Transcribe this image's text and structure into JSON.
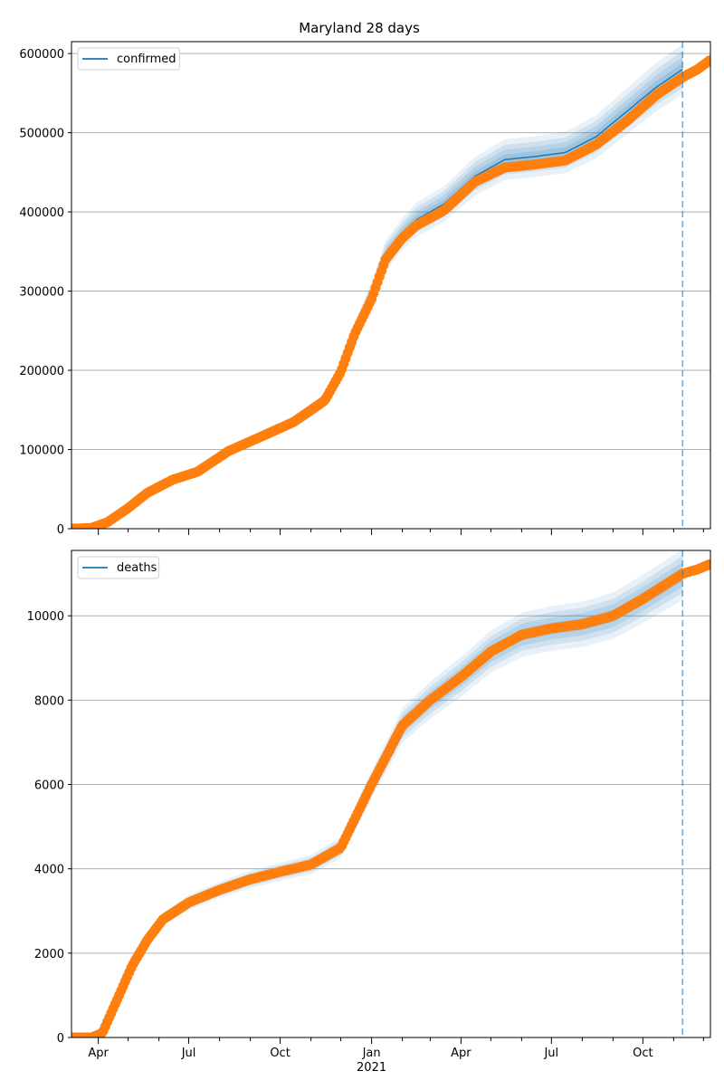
{
  "title": "Maryland 28 days",
  "chart_data": [
    {
      "type": "line",
      "title": "Maryland 28 days",
      "ylabel": "",
      "xlabel": "",
      "ylim": [
        0,
        615000
      ],
      "xlim": [
        "2020-03-05",
        "2021-12-08"
      ],
      "yticks": [
        0,
        100000,
        200000,
        300000,
        400000,
        500000,
        600000
      ],
      "ytick_labels": [
        "0",
        "100000",
        "200000",
        "300000",
        "400000",
        "500000",
        "600000"
      ],
      "forecast_start": "2021-11-10",
      "legend": {
        "entries": [
          "confirmed"
        ],
        "position": "upper left"
      },
      "grid": "horizontal",
      "colors": {
        "model": "#1f77b4",
        "observed": "#ff7f0e",
        "band": "#1f77b4"
      },
      "series": [
        {
          "name": "confirmed",
          "kind": "model-with-bands",
          "x": [
            "2020-03-05",
            "2020-03-25",
            "2020-04-10",
            "2020-05-01",
            "2020-05-20",
            "2020-06-15",
            "2020-07-10",
            "2020-08-10",
            "2020-09-15",
            "2020-10-15",
            "2020-11-15",
            "2020-12-01",
            "2020-12-15",
            "2021-01-01",
            "2021-01-15",
            "2021-02-01",
            "2021-02-15",
            "2021-03-15",
            "2021-04-15",
            "2021-05-15",
            "2021-06-15",
            "2021-07-15",
            "2021-08-15",
            "2021-09-15",
            "2021-10-15",
            "2021-11-10"
          ],
          "values": [
            0,
            1000,
            8000,
            26000,
            45000,
            62000,
            72000,
            98000,
            118000,
            135000,
            162000,
            198000,
            246000,
            296000,
            345000,
            372000,
            390000,
            410000,
            445000,
            466000,
            470000,
            475000,
            495000,
            527000,
            558000,
            580000
          ]
        },
        {
          "name": "",
          "kind": "observed",
          "x": [
            "2020-03-05",
            "2020-03-25",
            "2020-04-10",
            "2020-05-01",
            "2020-05-20",
            "2020-06-15",
            "2020-07-10",
            "2020-08-10",
            "2020-09-15",
            "2020-10-15",
            "2020-11-15",
            "2020-12-01",
            "2020-12-15",
            "2021-01-01",
            "2021-01-15",
            "2021-02-01",
            "2021-02-15",
            "2021-03-15",
            "2021-04-15",
            "2021-05-15",
            "2021-06-15",
            "2021-07-15",
            "2021-08-15",
            "2021-09-15",
            "2021-10-15",
            "2021-11-10",
            "2021-11-25",
            "2021-12-08"
          ],
          "values": [
            0,
            1000,
            8000,
            26000,
            45000,
            62000,
            72000,
            98000,
            118000,
            135000,
            162000,
            198000,
            246000,
            290000,
            340000,
            367000,
            383000,
            402000,
            438000,
            456000,
            460000,
            465000,
            485000,
            515000,
            548000,
            570000,
            580000,
            592000
          ]
        }
      ]
    },
    {
      "type": "line",
      "title": "",
      "ylabel": "",
      "xlabel": "",
      "ylim": [
        0,
        11550
      ],
      "xlim": [
        "2020-03-05",
        "2021-12-08"
      ],
      "yticks": [
        0,
        2000,
        4000,
        6000,
        8000,
        10000
      ],
      "ytick_labels": [
        "0",
        "2000",
        "4000",
        "6000",
        "8000",
        "10000"
      ],
      "forecast_start": "2021-11-10",
      "legend": {
        "entries": [
          "deaths"
        ],
        "position": "upper left"
      },
      "grid": "horizontal",
      "colors": {
        "model": "#1f77b4",
        "observed": "#ff7f0e",
        "band": "#1f77b4"
      },
      "series": [
        {
          "name": "deaths",
          "kind": "model-with-bands",
          "x": [
            "2020-03-05",
            "2020-03-25",
            "2020-04-05",
            "2020-04-20",
            "2020-05-05",
            "2020-05-20",
            "2020-06-05",
            "2020-07-01",
            "2020-08-01",
            "2020-09-01",
            "2020-10-01",
            "2020-11-01",
            "2020-12-01",
            "2021-01-01",
            "2021-02-01",
            "2021-03-01",
            "2021-04-01",
            "2021-05-01",
            "2021-06-01",
            "2021-07-01",
            "2021-08-01",
            "2021-09-01",
            "2021-10-01",
            "2021-11-10"
          ],
          "values": [
            0,
            0,
            100,
            900,
            1700,
            2300,
            2800,
            3200,
            3500,
            3750,
            3930,
            4100,
            4500,
            6000,
            7400,
            8000,
            8550,
            9150,
            9550,
            9700,
            9800,
            10000,
            10400,
            10980
          ]
        },
        {
          "name": "",
          "kind": "observed",
          "x": [
            "2020-03-05",
            "2020-03-25",
            "2020-04-05",
            "2020-04-20",
            "2020-05-05",
            "2020-05-20",
            "2020-06-05",
            "2020-07-01",
            "2020-08-01",
            "2020-09-01",
            "2020-10-01",
            "2020-11-01",
            "2020-12-01",
            "2021-01-01",
            "2021-02-01",
            "2021-03-01",
            "2021-04-01",
            "2021-05-01",
            "2021-06-01",
            "2021-07-01",
            "2021-08-01",
            "2021-09-01",
            "2021-10-01",
            "2021-11-10",
            "2021-11-25",
            "2021-12-08"
          ],
          "values": [
            0,
            0,
            100,
            900,
            1700,
            2300,
            2800,
            3200,
            3500,
            3750,
            3930,
            4100,
            4500,
            6000,
            7400,
            8000,
            8550,
            9150,
            9550,
            9700,
            9800,
            10000,
            10400,
            11000,
            11100,
            11230
          ]
        }
      ]
    }
  ],
  "x_axis": {
    "tick_labels": [
      {
        "label": "Apr",
        "date": "2020-04-01"
      },
      {
        "label": "Jul",
        "date": "2020-07-01"
      },
      {
        "label": "Oct",
        "date": "2020-10-01"
      },
      {
        "label": "Jan",
        "date": "2021-01-01"
      },
      {
        "label": "Apr",
        "date": "2021-04-01"
      },
      {
        "label": "Jul",
        "date": "2021-07-01"
      },
      {
        "label": "Oct",
        "date": "2021-10-01"
      }
    ],
    "year_label": "2021",
    "minor_months": [
      "2020-05-01",
      "2020-06-01",
      "2020-08-01",
      "2020-09-01",
      "2020-11-01",
      "2020-12-01",
      "2021-02-01",
      "2021-03-01",
      "2021-05-01",
      "2021-06-01",
      "2021-08-01",
      "2021-09-01",
      "2021-11-01",
      "2021-12-01"
    ]
  }
}
